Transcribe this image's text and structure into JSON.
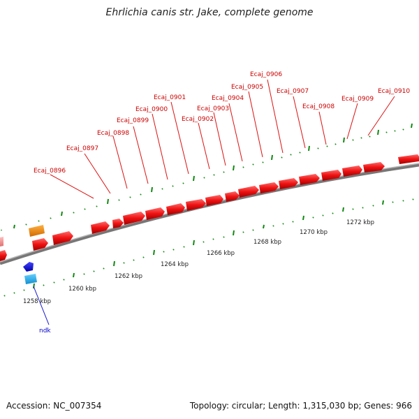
{
  "title": "Ehrlichia canis str. Jake, complete genome",
  "footer": {
    "accession": "Accession: NC_007354",
    "summary": "Topology: circular; Length: 1,315,030 bp; Genes: 966"
  },
  "colors": {
    "gene_forward": "#ee1111",
    "gene_faded": "#f08a8a",
    "gene_orange": "#f08a10",
    "gene_blue": "#1010dd",
    "gene_cyan": "#22aaee",
    "backbone": "#7a7a7a",
    "ticks": "#118811",
    "label_red": "#cc0000",
    "label_blue": "#0000cc"
  },
  "scale_labels": [
    "1258 kbp",
    "1260 kbp",
    "1262 kbp",
    "1264 kbp",
    "1266 kbp",
    "1268 kbp",
    "1270 kbp",
    "1272 kbp"
  ],
  "gene_labels": [
    "Ecaj_0896",
    "Ecaj_0897",
    "Ecaj_0898",
    "Ecaj_0899",
    "Ecaj_0900",
    "Ecaj_0901",
    "Ecaj_0902",
    "Ecaj_0903",
    "Ecaj_0904",
    "Ecaj_0905",
    "Ecaj_0906",
    "Ecaj_0907",
    "Ecaj_0908",
    "Ecaj_0909",
    "Ecaj_0910"
  ],
  "other_labels": [
    "ndk"
  ]
}
